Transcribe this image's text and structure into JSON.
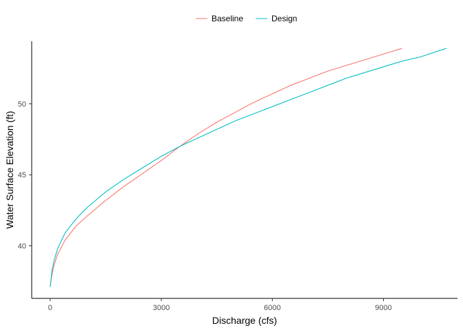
{
  "chart_data": {
    "type": "line",
    "title": "",
    "xlabel": "Discharge (cfs)",
    "ylabel": "Water Surface Elevation (ft)",
    "xlim": [
      -500,
      11000
    ],
    "ylim": [
      36.3,
      54.4
    ],
    "x_ticks": [
      0,
      3000,
      6000,
      9000
    ],
    "x_tick_labels": [
      "0",
      "3000",
      "6000",
      "9000"
    ],
    "y_ticks": [
      40,
      45,
      50
    ],
    "y_tick_labels": [
      "40",
      "45",
      "50"
    ],
    "grid": false,
    "legend_position": "top",
    "series": [
      {
        "name": "Baseline",
        "color": "#F8766D",
        "x": [
          0,
          50,
          100,
          200,
          400,
          700,
          1000,
          1500,
          2000,
          2500,
          3000,
          3500,
          4000,
          4500,
          5000,
          5500,
          6000,
          6500,
          7000,
          7500,
          8000,
          8500,
          9000,
          9500
        ],
        "y": [
          37.2,
          38.0,
          38.6,
          39.4,
          40.4,
          41.4,
          42.1,
          43.2,
          44.2,
          45.1,
          46.0,
          47.0,
          47.9,
          48.7,
          49.4,
          50.1,
          50.7,
          51.3,
          51.8,
          52.3,
          52.7,
          53.1,
          53.5,
          53.9
        ]
      },
      {
        "name": "Design",
        "color": "#00BFC4",
        "x": [
          0,
          50,
          100,
          200,
          400,
          700,
          1000,
          1500,
          2000,
          2500,
          3000,
          3500,
          4000,
          4500,
          5000,
          5500,
          6000,
          6500,
          7000,
          7500,
          8000,
          8500,
          9000,
          9500,
          10000,
          10700
        ],
        "y": [
          37.1,
          38.3,
          38.9,
          39.8,
          40.9,
          41.9,
          42.7,
          43.8,
          44.7,
          45.5,
          46.3,
          47.0,
          47.6,
          48.2,
          48.8,
          49.3,
          49.8,
          50.3,
          50.8,
          51.3,
          51.8,
          52.2,
          52.6,
          53.0,
          53.3,
          53.9
        ]
      }
    ]
  }
}
